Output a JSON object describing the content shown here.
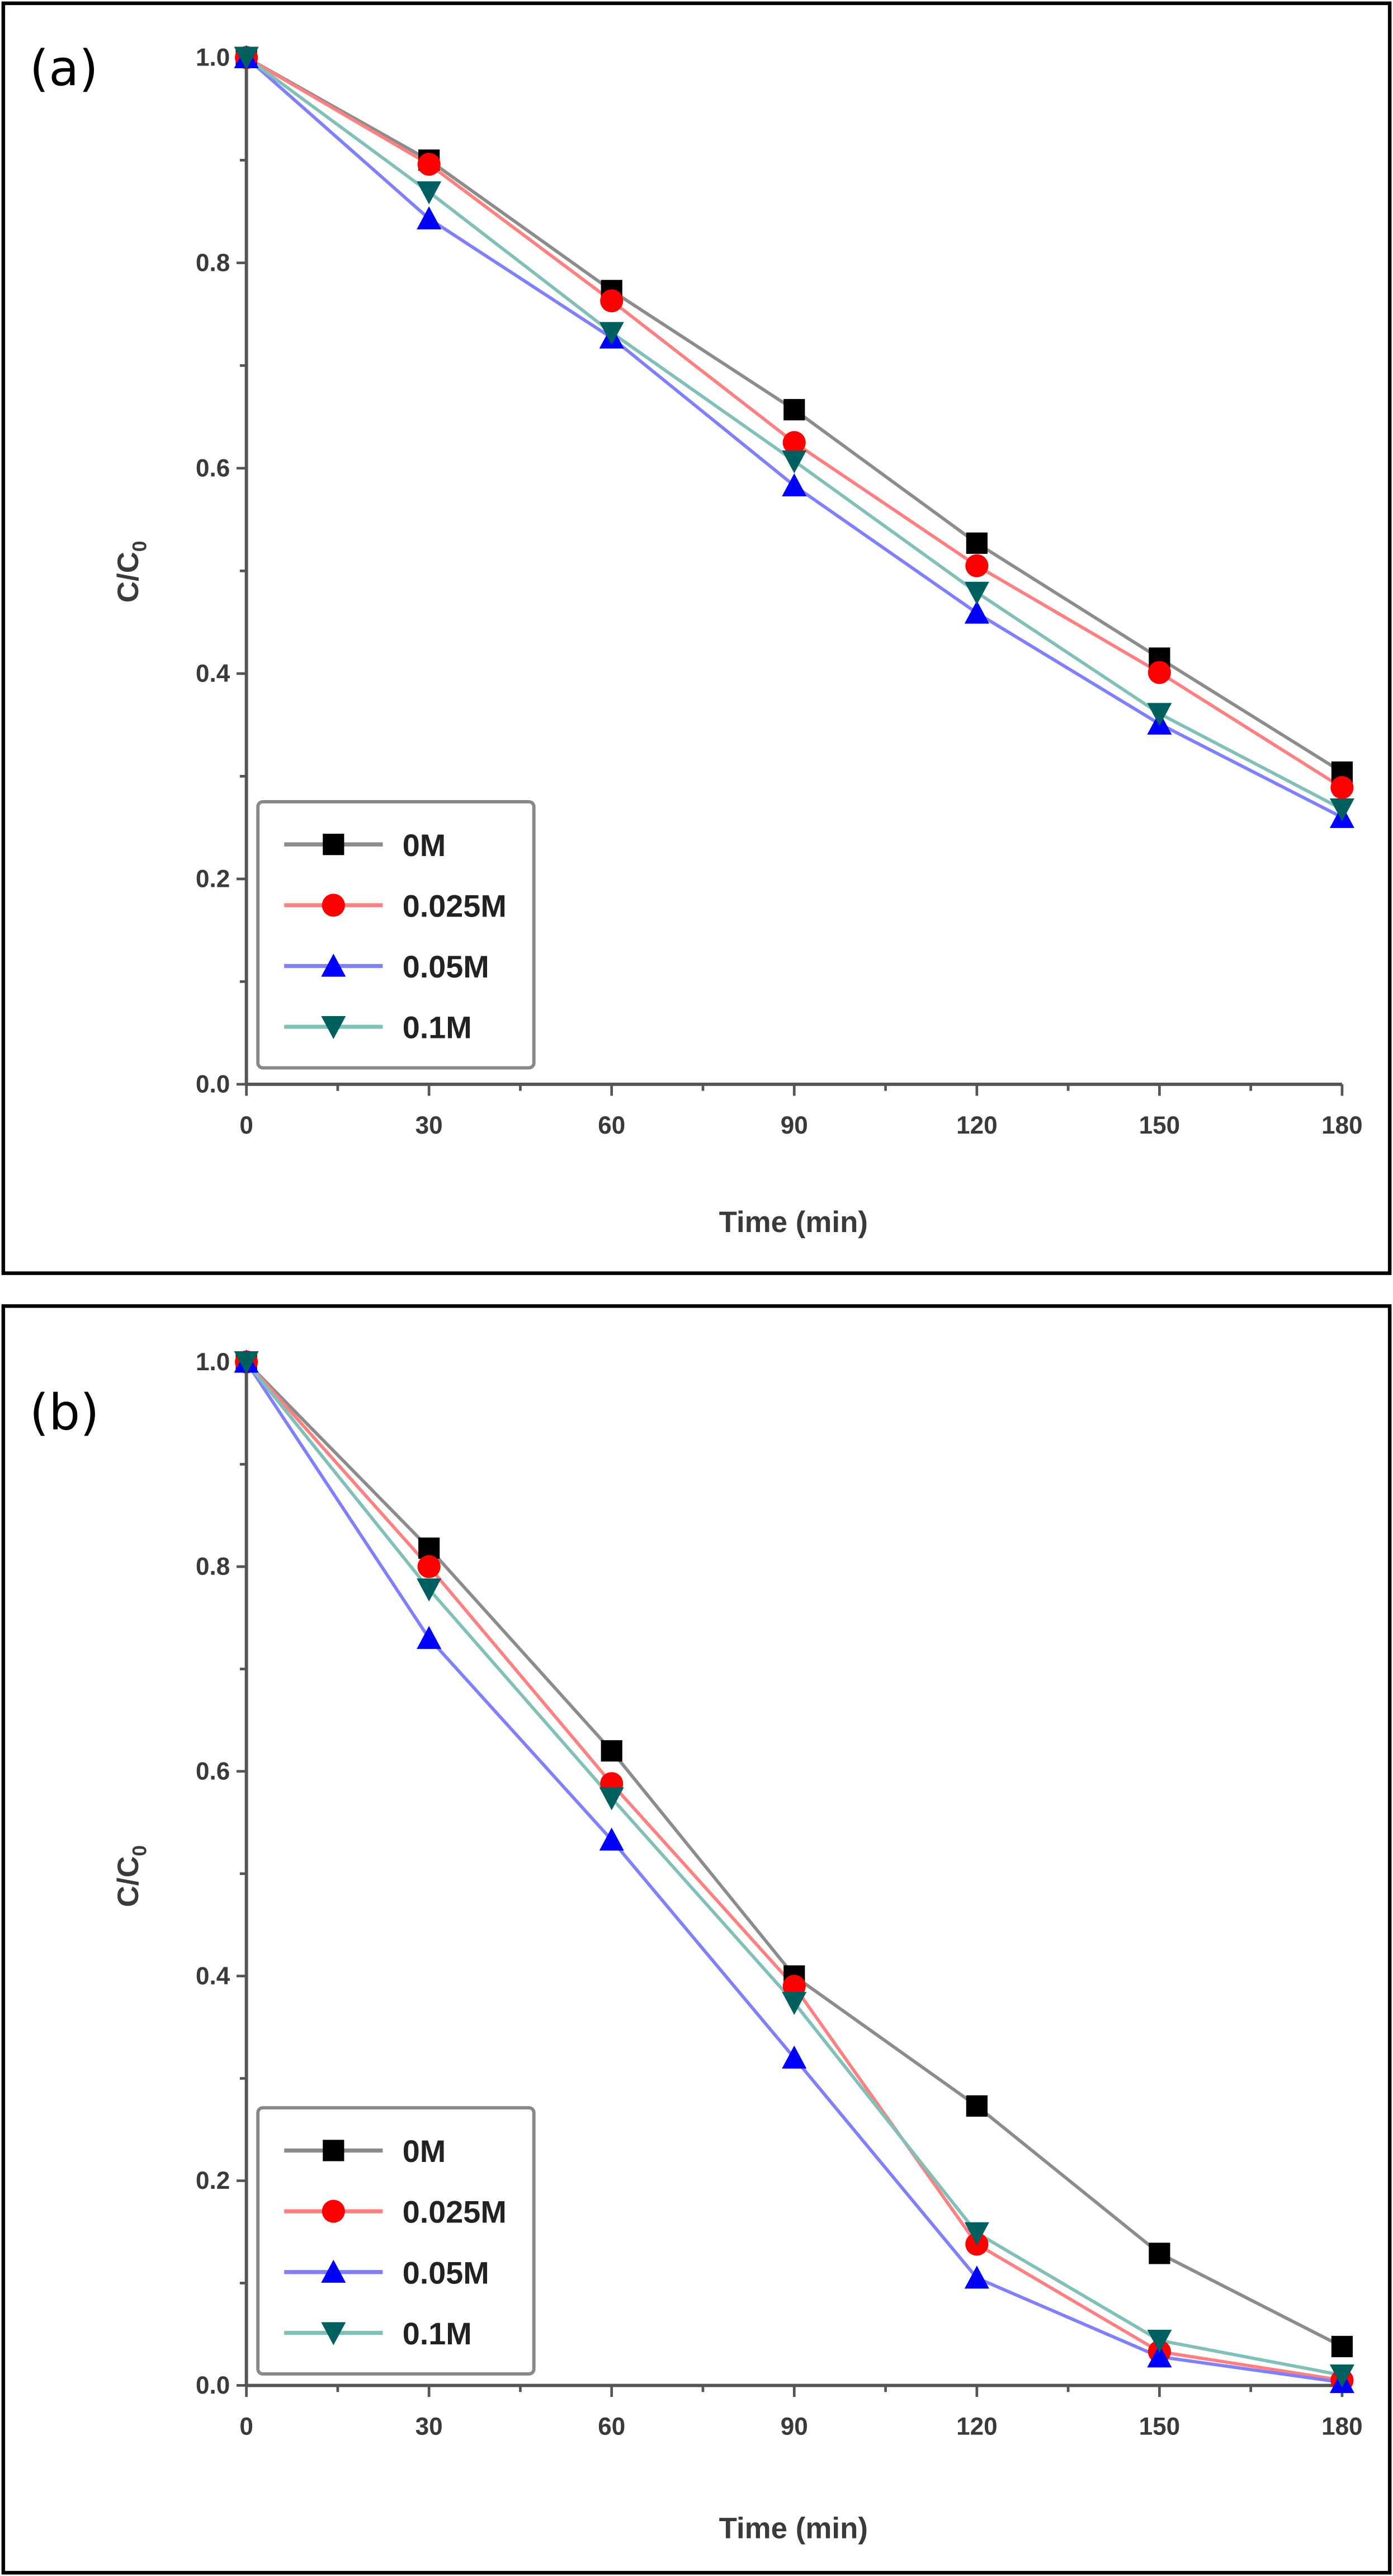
{
  "chart_data": [
    {
      "type": "line",
      "panel_label": "(a)",
      "xlabel": "Time (min)",
      "ylabel_main": "C/C",
      "ylabel_sub": "0",
      "xlim": [
        0,
        180
      ],
      "ylim": [
        0.0,
        1.0
      ],
      "x_ticks": [
        0,
        30,
        60,
        90,
        120,
        150,
        180
      ],
      "x_tick_labels": [
        "0",
        "30",
        "60",
        "90",
        "120",
        "150",
        "180"
      ],
      "y_ticks": [
        0.0,
        0.2,
        0.4,
        0.6,
        0.8,
        1.0
      ],
      "y_tick_labels": [
        "0.0",
        "0.2",
        "0.4",
        "0.6",
        "0.8",
        "1.0"
      ],
      "grid": false,
      "legend_position": "bottom-left",
      "x": [
        0,
        30,
        60,
        90,
        120,
        150,
        180
      ],
      "series": [
        {
          "name": "0M",
          "marker": "square",
          "marker_color": "#000000",
          "line_color": "#8c8c8c",
          "values": [
            1.0,
            0.9,
            0.773,
            0.657,
            0.527,
            0.415,
            0.304
          ]
        },
        {
          "name": "0.025M",
          "marker": "circle",
          "marker_color": "#ff0000",
          "line_color": "#ff8080",
          "values": [
            1.0,
            0.896,
            0.763,
            0.625,
            0.505,
            0.401,
            0.289
          ]
        },
        {
          "name": "0.05M",
          "marker": "triangle-up",
          "marker_color": "#0000ff",
          "line_color": "#8080ff",
          "values": [
            1.0,
            0.843,
            0.727,
            0.583,
            0.459,
            0.351,
            0.26
          ]
        },
        {
          "name": "0.1M",
          "marker": "triangle-down",
          "marker_color": "#006060",
          "line_color": "#80c0b8",
          "values": [
            1.0,
            0.869,
            0.732,
            0.607,
            0.479,
            0.361,
            0.268
          ]
        }
      ]
    },
    {
      "type": "line",
      "panel_label": "(b)",
      "xlabel": "Time (min)",
      "ylabel_main": "C/C",
      "ylabel_sub": "0",
      "xlim": [
        0,
        180
      ],
      "ylim": [
        0.0,
        1.0
      ],
      "x_ticks": [
        0,
        30,
        60,
        90,
        120,
        150,
        180
      ],
      "x_tick_labels": [
        "0",
        "30",
        "60",
        "90",
        "120",
        "150",
        "180"
      ],
      "y_ticks": [
        0.0,
        0.2,
        0.4,
        0.6,
        0.8,
        1.0
      ],
      "y_tick_labels": [
        "0.0",
        "0.2",
        "0.4",
        "0.6",
        "0.8",
        "1.0"
      ],
      "grid": false,
      "legend_position": "bottom-left",
      "x": [
        0,
        30,
        60,
        90,
        120,
        150,
        180
      ],
      "series": [
        {
          "name": "0M",
          "marker": "square",
          "marker_color": "#000000",
          "line_color": "#8c8c8c",
          "values": [
            1.0,
            0.818,
            0.62,
            0.4,
            0.273,
            0.129,
            0.038
          ]
        },
        {
          "name": "0.025M",
          "marker": "circle",
          "marker_color": "#ff0000",
          "line_color": "#ff8080",
          "values": [
            1.0,
            0.8,
            0.588,
            0.39,
            0.138,
            0.033,
            0.005
          ]
        },
        {
          "name": "0.05M",
          "marker": "triangle-up",
          "marker_color": "#0000ff",
          "line_color": "#8080ff",
          "values": [
            1.0,
            0.73,
            0.533,
            0.32,
            0.105,
            0.028,
            0.003
          ]
        },
        {
          "name": "0.1M",
          "marker": "triangle-down",
          "marker_color": "#006060",
          "line_color": "#80c0b8",
          "values": [
            1.0,
            0.778,
            0.574,
            0.374,
            0.149,
            0.044,
            0.01
          ]
        }
      ]
    }
  ]
}
